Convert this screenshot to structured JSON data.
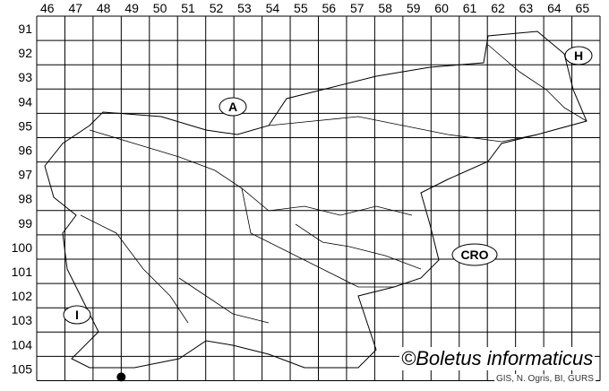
{
  "map": {
    "columns": [
      "46",
      "47",
      "48",
      "49",
      "50",
      "51",
      "52",
      "53",
      "54",
      "55",
      "56",
      "57",
      "58",
      "59",
      "60",
      "61",
      "62",
      "63",
      "64",
      "65"
    ],
    "rows": [
      "91",
      "92",
      "93",
      "94",
      "95",
      "96",
      "97",
      "98",
      "99",
      "100",
      "101",
      "102",
      "103",
      "104",
      "105"
    ],
    "neighbours": [
      {
        "label": "A"
      },
      {
        "label": "H"
      },
      {
        "label": "CRO"
      },
      {
        "label": "I"
      }
    ],
    "records": [
      {
        "column": "48",
        "row": "105"
      }
    ],
    "record_color": "#000000",
    "copyright": "©Boletus informaticus",
    "credit": "GIS, N. Ogris, BI, GURS"
  }
}
